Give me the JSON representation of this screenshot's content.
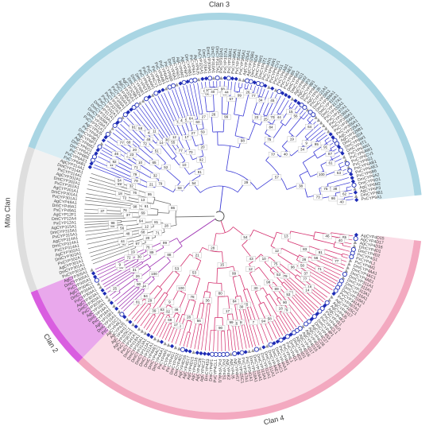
{
  "clans": [
    {
      "label": "Clan 3",
      "ring_color": "#a9d5e3",
      "fill_color": "#d9edf4",
      "branch_color": "#3a3ad6"
    },
    {
      "label": "Clan 4",
      "ring_color": "#f3a9c0",
      "fill_color": "#fbdce6",
      "branch_color": "#d4306e"
    },
    {
      "label": "Clan 2",
      "ring_color": "#d95ee0",
      "fill_color": "#e9a8ec",
      "branch_color": "#9c2fb1"
    },
    {
      "label": "Mito Clan",
      "ring_color": "#dedede",
      "fill_color": "#f2f2f2",
      "branch_color": "#707070"
    }
  ],
  "node_supports": [
    "100",
    "99",
    "98",
    "97",
    "96",
    "95",
    "94",
    "92",
    "91",
    "90",
    "89",
    "88",
    "87",
    "86",
    "85",
    "84",
    "83",
    "82",
    "81",
    "80",
    "79",
    "78",
    "77",
    "76",
    "75",
    "74",
    "73",
    "72",
    "71",
    "70",
    "69",
    "68",
    "67",
    "66",
    "65",
    "64",
    "63",
    "62",
    "61",
    "60",
    "59",
    "58",
    "57",
    "56",
    "55",
    "54",
    "53",
    "52",
    "51",
    "50",
    "49",
    "48",
    "46",
    "45",
    "44",
    "43",
    "41",
    "40",
    "39",
    "38",
    "37",
    "36",
    "35",
    "34",
    "33",
    "32",
    "31",
    "30",
    "29",
    "28",
    "27",
    "26",
    "25",
    "24",
    "23",
    "22",
    "21",
    "20",
    "19",
    "18",
    "17",
    "15",
    "14",
    "13",
    "12",
    "11",
    "10",
    "9",
    "8",
    "7"
  ],
  "tip_labels": {
    "mito": [
      "PxCYP301A1",
      "DmCYP301A1",
      "AgCYP301A1",
      "PxCYP302A1",
      "DmCYP302A1",
      "AgCYP302A1",
      "PxCYP314A1",
      "DmCYP314A1",
      "AgCYP314A1",
      "PxCYP315A1",
      "DmCYP315A1",
      "AgCYP315A1",
      "PxCYP12A1",
      "DmCYP12A4",
      "AgCYP12F1",
      "PxCYP49A1",
      "DmCYP49A1",
      "AgCYP49A1"
    ],
    "clan3": [
      "PxCYP6AB1",
      "PxCYP6AE1",
      "PxCYP6B6",
      "DmCYP6A2",
      "DmCYP6G1",
      "AgCYP6M2",
      "AgCYP6P3",
      "DmCYP9B1",
      "PxCYP9A1",
      "AgCYP9J5",
      "PxCYP321A1",
      "DmCYP28A1",
      "DmCYP309A1",
      "DmCYP310A1",
      "DmCYP317A1",
      "PxCYP332A1",
      "PxCYP337A1",
      "PxCYP338A1",
      "PxCYP340A1",
      "PxCYP354A1",
      "PxCYP365A1",
      "AgCYP325A1",
      "AgCYP329B1",
      "DmCYP6D4",
      "DmCYP6W1",
      "DmCYP6T1",
      "PxCYP6AN1",
      "PxCYP6AW1",
      "PxCYP6CV1",
      "PxCYP9G1"
    ],
    "clan4": [
      "AgCYP4D15",
      "AgCYP4D17",
      "AgCYP4D16",
      "DmCYP4D1",
      "DmCYP4D2",
      "PxCYP4G1",
      "PxCYP4L1",
      "PxCYP4M1",
      "DmCYP4AA1",
      "DmCYP4AC1",
      "DmCYP4AE1",
      "DmCYP311A1",
      "DmCYP312A1",
      "DmCYP313A1",
      "DmCYP316A1",
      "DmCYP318A1",
      "PxCYP341A1",
      "PxCYP367A1",
      "AgCYP325C1",
      "AgCYP4H17",
      "AgCYP4J5",
      "AgCYP4K2",
      "PxCYP4S1",
      "PxCYP4AU1",
      "PxCYP4CL1",
      "DmCYP4P1",
      "DmCYP4S3",
      "AgCYP4C27",
      "AgCYP4C28",
      "AgCYP4G16"
    ],
    "clan2": [
      "PxCYP15C1",
      "DmCYP15A1",
      "AgCYP15B1",
      "PxCYP18A1",
      "DmCYP18A1",
      "AgCYP18A1",
      "PxCYP303A1",
      "DmCYP303A1",
      "AgCYP303A1",
      "PxCYP304A1",
      "DmCYP304A1",
      "AgCYP304C1",
      "PxCYP305A1",
      "DmCYP305A1",
      "AgCYP305A1",
      "PxCYP306A1",
      "DmCYP306A1",
      "AgCYP306A1",
      "PxCYP307A1",
      "DmCYP307A1",
      "AgCYP307A1"
    ]
  }
}
